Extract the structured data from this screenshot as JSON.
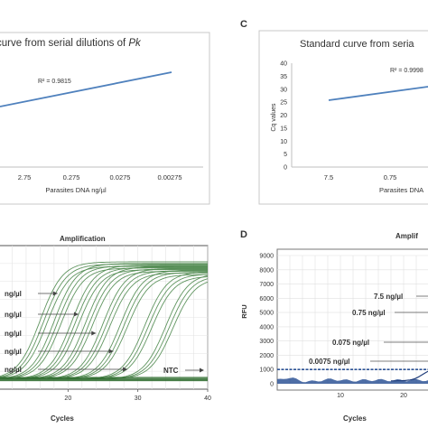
{
  "panels": {
    "C": "C",
    "D": "D"
  },
  "chart_data": [
    {
      "id": "panel-b",
      "type": "line",
      "title": "curve from serial dilutions of",
      "title_italic": "Pk",
      "categories": [
        "2.75",
        "0.275",
        "0.0275",
        "0.00275"
      ],
      "xlabel": "Parasites DNA ng/µl",
      "ylabel": "",
      "r2": "R² = 0.9815",
      "series": [
        {
          "x": [
            0.3,
            3.2
          ],
          "values": [
            0.0,
            0.0
          ]
        }
      ],
      "line_color": "#4f81bd"
    },
    {
      "id": "panel-c",
      "type": "line",
      "title": "Standard curve from seria",
      "categories": [
        "7.5",
        "0.75"
      ],
      "xlabel": "Parasites DNA",
      "ylabel": "Cq values",
      "yticks": [
        "0",
        "5",
        "10",
        "15",
        "20",
        "25",
        "30",
        "35",
        "40"
      ],
      "ylim": [
        0,
        40
      ],
      "r2": "R² = 0.9998",
      "series": [
        {
          "x": [
            0,
            1.15
          ],
          "values": [
            25.0,
            28.6
          ]
        }
      ],
      "line_color": "#4f81bd"
    },
    {
      "id": "panel-a-amplification",
      "type": "line",
      "title": "Amplification",
      "xlabel": "Cycles",
      "ylabel": "",
      "xticks": [
        "20",
        "30",
        "40"
      ],
      "xlim": [
        10,
        40
      ],
      "annotations": [
        "ng/µl",
        "ng/µl",
        "ng/µl",
        "ng/µl",
        "ng/µl",
        "NTC"
      ],
      "line_color": "#4f8a4f",
      "ct_values": [
        16.5,
        18.5,
        21,
        23,
        25.5,
        28,
        31.5,
        34.5
      ]
    },
    {
      "id": "panel-d",
      "type": "line",
      "title": "Amplif",
      "xlabel": "Cycles",
      "ylabel": "RFU",
      "yticks": [
        "0",
        "1000",
        "2000",
        "3000",
        "4000",
        "5000",
        "6000",
        "7000",
        "8000",
        "9000"
      ],
      "ylim": [
        0,
        9000
      ],
      "xticks": [
        "10",
        "20"
      ],
      "threshold": 1000,
      "annotations": [
        "7.5 ng/µl",
        "0.75 ng/µl",
        "0.075 ng/µl",
        "0.0075 ng/µl"
      ],
      "line_color": "#2f5597"
    }
  ]
}
